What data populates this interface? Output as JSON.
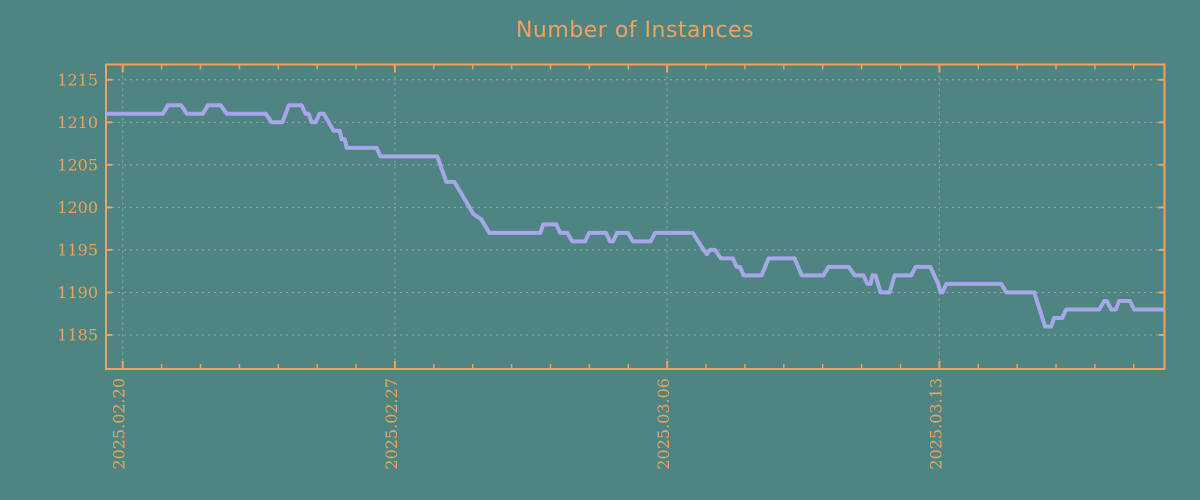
{
  "chart_data": {
    "type": "line",
    "title": "Number of Instances",
    "legend": "none",
    "grid": true,
    "colors": {
      "background": "#4e8582",
      "axis_and_text": "#efa15d",
      "line": "#a6a6e8",
      "gridline": "#a9b3ad"
    },
    "x_axis": {
      "label": "",
      "range_days": [
        -0.43,
        26.79
      ],
      "major_ticks": [
        {
          "label": "2025.02.20",
          "day": 0
        },
        {
          "label": "2025.02.27",
          "day": 7
        },
        {
          "label": "2025.03.06",
          "day": 14
        },
        {
          "label": "2025.03.13",
          "day": 21
        }
      ],
      "minor_tick_days": [
        1,
        2,
        3,
        4,
        5,
        6,
        8,
        9,
        10,
        11,
        12,
        13,
        15,
        16,
        17,
        18,
        19,
        20,
        22,
        23,
        24,
        25,
        26
      ]
    },
    "y_axis": {
      "label": "",
      "range": [
        1181.0,
        1216.8
      ],
      "ticks": [
        1185,
        1190,
        1195,
        1200,
        1205,
        1210,
        1215
      ]
    },
    "points": [
      [
        -0.43,
        1211
      ],
      [
        1.03,
        1211
      ],
      [
        1.16,
        1212
      ],
      [
        1.5,
        1212
      ],
      [
        1.65,
        1211
      ],
      [
        2.06,
        1211
      ],
      [
        2.19,
        1212
      ],
      [
        2.52,
        1212
      ],
      [
        2.68,
        1211
      ],
      [
        3.68,
        1211
      ],
      [
        3.83,
        1210
      ],
      [
        4.11,
        1210
      ],
      [
        4.27,
        1212
      ],
      [
        4.6,
        1212
      ],
      [
        4.7,
        1211
      ],
      [
        4.78,
        1211
      ],
      [
        4.86,
        1210
      ],
      [
        4.96,
        1210
      ],
      [
        5.06,
        1211
      ],
      [
        5.17,
        1211
      ],
      [
        5.42,
        1209
      ],
      [
        5.58,
        1209
      ],
      [
        5.63,
        1208
      ],
      [
        5.71,
        1208
      ],
      [
        5.76,
        1207
      ],
      [
        6.53,
        1207
      ],
      [
        6.63,
        1206
      ],
      [
        8.09,
        1206
      ],
      [
        8.32,
        1203
      ],
      [
        8.53,
        1203
      ],
      [
        9.02,
        1199.2
      ],
      [
        9.22,
        1198.6
      ],
      [
        9.43,
        1197
      ],
      [
        10.74,
        1197
      ],
      [
        10.81,
        1198
      ],
      [
        11.15,
        1198
      ],
      [
        11.25,
        1197
      ],
      [
        11.43,
        1197
      ],
      [
        11.56,
        1196
      ],
      [
        11.89,
        1196
      ],
      [
        11.99,
        1197
      ],
      [
        12.43,
        1197
      ],
      [
        12.53,
        1196
      ],
      [
        12.61,
        1196
      ],
      [
        12.71,
        1197
      ],
      [
        12.99,
        1197
      ],
      [
        13.12,
        1196
      ],
      [
        13.58,
        1196
      ],
      [
        13.69,
        1197
      ],
      [
        14.66,
        1197
      ],
      [
        14.94,
        1195
      ],
      [
        15.02,
        1194.5
      ],
      [
        15.1,
        1195
      ],
      [
        15.23,
        1195
      ],
      [
        15.38,
        1194
      ],
      [
        15.69,
        1194
      ],
      [
        15.79,
        1193
      ],
      [
        15.87,
        1193
      ],
      [
        15.97,
        1192
      ],
      [
        16.43,
        1192
      ],
      [
        16.61,
        1194
      ],
      [
        17.28,
        1194
      ],
      [
        17.46,
        1192
      ],
      [
        18.02,
        1192
      ],
      [
        18.15,
        1193
      ],
      [
        18.67,
        1193
      ],
      [
        18.82,
        1192
      ],
      [
        19.05,
        1192
      ],
      [
        19.15,
        1191
      ],
      [
        19.23,
        1191
      ],
      [
        19.28,
        1192
      ],
      [
        19.36,
        1192
      ],
      [
        19.49,
        1190
      ],
      [
        19.72,
        1190
      ],
      [
        19.85,
        1192
      ],
      [
        20.28,
        1192
      ],
      [
        20.39,
        1193
      ],
      [
        20.77,
        1193
      ],
      [
        20.97,
        1191
      ],
      [
        21.03,
        1190
      ],
      [
        21.08,
        1190
      ],
      [
        21.18,
        1191
      ],
      [
        22.59,
        1191
      ],
      [
        22.72,
        1190
      ],
      [
        23.44,
        1190
      ],
      [
        23.72,
        1186
      ],
      [
        23.88,
        1186
      ],
      [
        23.95,
        1187
      ],
      [
        24.16,
        1187
      ],
      [
        24.26,
        1188
      ],
      [
        25.11,
        1188
      ],
      [
        25.24,
        1189
      ],
      [
        25.31,
        1189
      ],
      [
        25.42,
        1188
      ],
      [
        25.54,
        1188
      ],
      [
        25.62,
        1189
      ],
      [
        25.9,
        1189
      ],
      [
        26.01,
        1188
      ],
      [
        26.79,
        1188
      ]
    ]
  }
}
